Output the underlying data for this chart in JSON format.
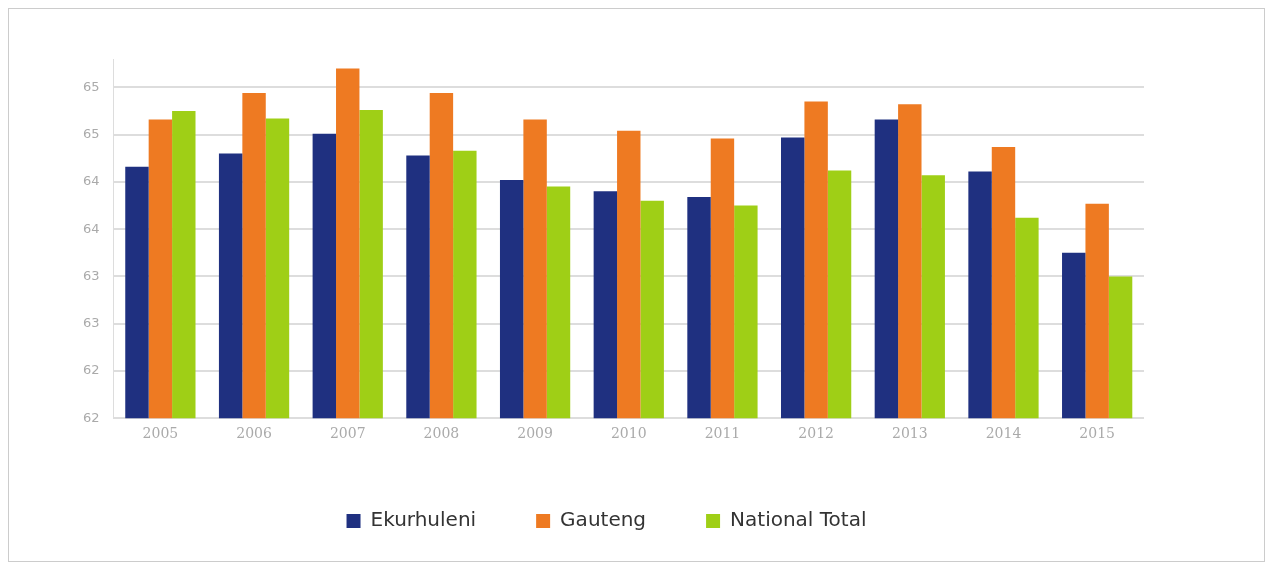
{
  "chart_data": {
    "type": "bar",
    "categories": [
      "2005",
      "2006",
      "2007",
      "2008",
      "2009",
      "2010",
      "2011",
      "2012",
      "2013",
      "2014",
      "2015"
    ],
    "series": [
      {
        "name": "Ekurhuleni",
        "color": "#1f3080",
        "values": [
          64.66,
          64.8,
          65.01,
          64.78,
          64.52,
          64.4,
          64.34,
          64.97,
          65.16,
          64.61,
          63.75
        ]
      },
      {
        "name": "Gauteng",
        "color": "#ee7a22",
        "values": [
          65.16,
          65.44,
          65.7,
          65.44,
          65.16,
          65.04,
          64.96,
          65.35,
          65.32,
          64.87,
          64.27
        ]
      },
      {
        "name": "National Total",
        "color": "#9fcf16",
        "values": [
          65.25,
          65.17,
          65.26,
          64.83,
          64.45,
          64.3,
          64.25,
          64.62,
          64.57,
          64.12,
          63.5
        ]
      }
    ],
    "ylim": [
      62,
      65.8
    ],
    "yticks": [
      {
        "value": 62,
        "label": "62"
      },
      {
        "value": 62.5,
        "label": "62"
      },
      {
        "value": 63,
        "label": "63"
      },
      {
        "value": 63.5,
        "label": "63"
      },
      {
        "value": 64,
        "label": "64"
      },
      {
        "value": 64.5,
        "label": "64"
      },
      {
        "value": 65,
        "label": "65"
      },
      {
        "value": 65.5,
        "label": "65"
      }
    ],
    "grid": "y",
    "legend": "bottom"
  }
}
